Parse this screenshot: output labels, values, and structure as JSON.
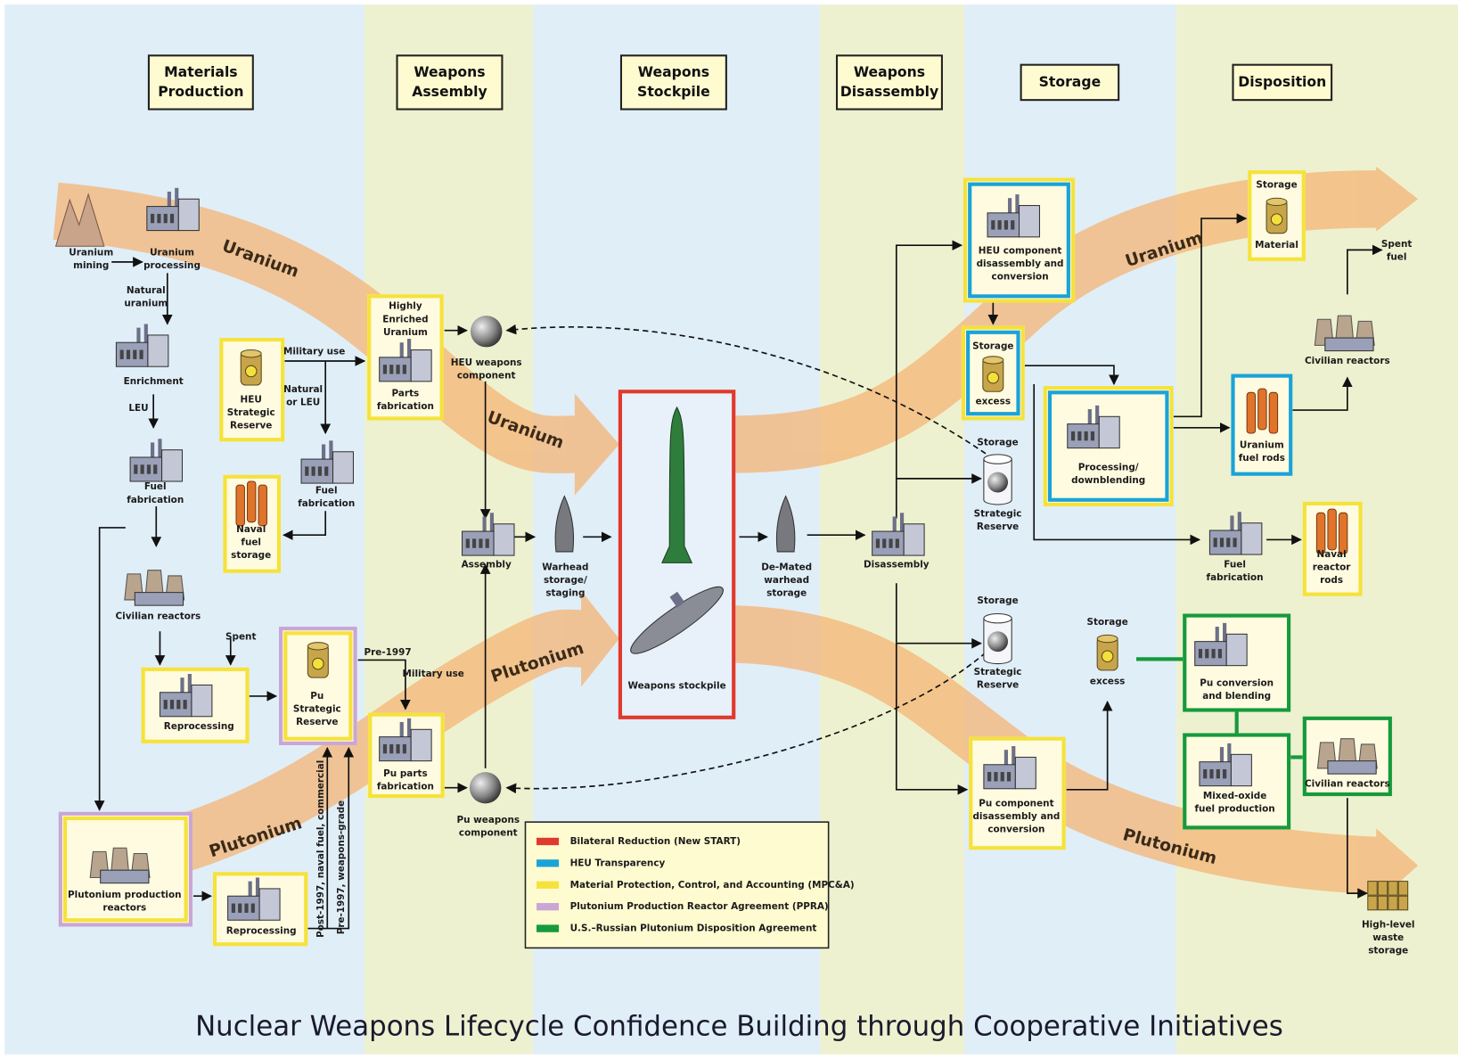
{
  "title": "Nuclear Weapons Lifecycle Confidence Building through Cooperative Initiatives",
  "columns": [
    [
      "Materials",
      "Production"
    ],
    [
      "Weapons",
      "Assembly"
    ],
    [
      "Weapons",
      "Stockpile"
    ],
    [
      "Weapons",
      "Disassembly"
    ],
    [
      "Storage"
    ],
    [
      "Disposition"
    ]
  ],
  "flows": [
    "Uranium",
    "Uranium",
    "Uranium",
    "Plutonium",
    "Plutonium",
    "Plutonium"
  ],
  "nodes": [
    {
      "label": [
        "Uranium",
        "mining"
      ]
    },
    {
      "label": [
        "Uranium",
        "processing"
      ]
    },
    {
      "label": [
        "Enrichment"
      ]
    },
    {
      "label": [
        "HEU",
        "Strategic",
        "Reserve"
      ]
    },
    {
      "label": [
        "Fuel",
        "fabrication"
      ]
    },
    {
      "label": [
        "Fuel",
        "fabrication"
      ]
    },
    {
      "label": [
        "Naval",
        "fuel",
        "storage"
      ]
    },
    {
      "label": [
        "Civilian reactors"
      ]
    },
    {
      "label": [
        "Reprocessing"
      ]
    },
    {
      "label": [
        "Pu",
        "Strategic",
        "Reserve"
      ]
    },
    {
      "label": [
        "Plutonium production",
        "reactors"
      ]
    },
    {
      "label": [
        "Reprocessing"
      ]
    },
    {
      "top": [
        "Highly",
        "Enriched",
        "Uranium"
      ],
      "label": [
        "Parts",
        "fabrication"
      ]
    },
    {
      "label": [
        "HEU weapons",
        "component"
      ]
    },
    {
      "label": [
        "Assembly"
      ]
    },
    {
      "label": [
        "Warhead",
        "storage/",
        "staging"
      ]
    },
    {
      "label": [
        "Weapons stockpile"
      ]
    },
    {
      "label": [
        "Pu parts",
        "fabrication"
      ]
    },
    {
      "label": [
        "Pu weapons",
        "component"
      ]
    },
    {
      "label": [
        "De-Mated",
        "warhead",
        "storage"
      ]
    },
    {
      "label": [
        "Disassembly"
      ]
    },
    {
      "label": [
        "HEU component",
        "disassembly and",
        "conversion"
      ]
    },
    {
      "top": [
        "Storage"
      ],
      "label": [
        "excess"
      ]
    },
    {
      "top": [
        "Storage"
      ],
      "label": [
        "Strategic",
        "Reserve"
      ]
    },
    {
      "label": [
        "Processing/",
        "downblending"
      ]
    },
    {
      "top": [
        "Storage"
      ],
      "label": [
        "Material"
      ]
    },
    {
      "label": [
        "Civilian reactors"
      ]
    },
    {
      "label": [
        "Uranium",
        "fuel rods"
      ]
    },
    {
      "label": [
        "Fuel",
        "fabrication"
      ]
    },
    {
      "label": [
        "Naval",
        "reactor",
        "rods"
      ]
    },
    {
      "label": [
        "Spent",
        "fuel"
      ]
    },
    {
      "top": [
        "Storage"
      ],
      "label": [
        "Strategic",
        "Reserve"
      ]
    },
    {
      "top": [
        "Storage"
      ],
      "label": [
        "excess"
      ]
    },
    {
      "label": [
        "Pu component",
        "disassembly and",
        "conversion"
      ]
    },
    {
      "label": [
        "Pu conversion",
        "and blending"
      ]
    },
    {
      "label": [
        "Mixed-oxide",
        "fuel production"
      ]
    },
    {
      "label": [
        "Civilian reactors"
      ]
    },
    {
      "label": [
        "High-level",
        "waste",
        "storage"
      ]
    }
  ],
  "edge_labels": [
    [
      "Natural",
      "uranium"
    ],
    [
      "LEU"
    ],
    [
      "Military use"
    ],
    [
      "Natural",
      "or LEU"
    ],
    [
      "Spent"
    ],
    [
      "Pre-1997"
    ],
    [
      "Military use"
    ],
    [
      "Post-1997, naval fuel, commercial"
    ],
    [
      "Pre-1997, weapons-grade"
    ]
  ],
  "legend": [
    {
      "label": "Bilateral Reduction (New START)",
      "color": "#e0392d"
    },
    {
      "label": "HEU Transparency",
      "color": "#1aa3d8"
    },
    {
      "label": "Material Protection, Control, and Accounting (MPC&A)",
      "color": "#f5e23b"
    },
    {
      "label": "Plutonium Production Reactor Agreement (PPRA)",
      "color": "#c9a6d6"
    },
    {
      "label": "U.S.–Russian Plutonium Disposition Agreement",
      "color": "#159a3c"
    }
  ]
}
